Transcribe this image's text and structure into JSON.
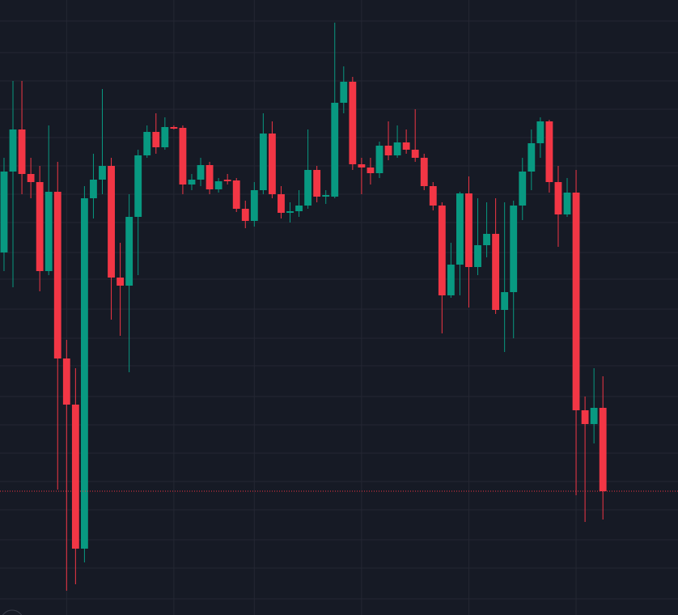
{
  "chart_data": {
    "type": "candlestick",
    "x": [
      0,
      1,
      2,
      3,
      4,
      5,
      6,
      7,
      8,
      9,
      10,
      11,
      12,
      13,
      14,
      15,
      16,
      17,
      18,
      19,
      20,
      21,
      22,
      23,
      24,
      25,
      26,
      27,
      28,
      29,
      30,
      31,
      32,
      33,
      34,
      35,
      36,
      37,
      38,
      39,
      40,
      41,
      42,
      43,
      44,
      45,
      46,
      47,
      48,
      49,
      50,
      51,
      52,
      53,
      54,
      55,
      56,
      57,
      58,
      59,
      60,
      61,
      62,
      63,
      64,
      65,
      66,
      67
    ],
    "open": [
      448,
      548,
      600,
      545,
      535,
      425,
      523,
      317,
      260,
      82,
      515,
      538,
      555,
      417,
      407,
      492,
      568,
      597,
      578,
      603,
      602,
      532,
      538,
      556,
      526,
      538,
      537,
      502,
      487,
      525,
      595,
      520,
      497,
      499,
      506,
      550,
      517,
      517,
      633,
      659,
      557,
      553,
      546,
      580,
      568,
      584,
      575,
      565,
      530,
      506,
      395,
      433,
      521,
      430,
      457,
      471,
      377,
      399,
      506,
      548,
      583,
      610,
      535,
      495,
      522,
      253,
      236,
      256
    ],
    "high": [
      565,
      660,
      660,
      565,
      555,
      605,
      560,
      340,
      305,
      530,
      570,
      650,
      565,
      460,
      520,
      575,
      605,
      620,
      615,
      605,
      605,
      545,
      565,
      560,
      540,
      545,
      540,
      512,
      535,
      620,
      610,
      530,
      510,
      525,
      600,
      555,
      525,
      732,
      678,
      665,
      565,
      565,
      585,
      610,
      605,
      600,
      625,
      570,
      535,
      510,
      460,
      523,
      542,
      515,
      510,
      515,
      510,
      512,
      565,
      600,
      615,
      612,
      555,
      540,
      550,
      270,
      305,
      295
    ],
    "low": [
      425,
      405,
      520,
      515,
      400,
      420,
      155,
      30,
      38,
      65,
      490,
      520,
      365,
      345,
      300,
      420,
      565,
      570,
      575,
      600,
      520,
      525,
      530,
      520,
      522,
      532,
      498,
      478,
      480,
      520,
      515,
      490,
      485,
      492,
      502,
      510,
      508,
      515,
      620,
      550,
      520,
      532,
      540,
      562,
      565,
      570,
      560,
      525,
      500,
      348,
      392,
      395,
      380,
      420,
      442,
      372,
      325,
      342,
      488,
      525,
      565,
      522,
      455,
      492,
      148,
      115,
      212,
      118
    ],
    "close": [
      548,
      600,
      545,
      535,
      425,
      523,
      317,
      260,
      82,
      515,
      538,
      555,
      417,
      407,
      492,
      568,
      597,
      578,
      603,
      601,
      532,
      538,
      556,
      526,
      536,
      536,
      502,
      487,
      525,
      595,
      520,
      497,
      499,
      506,
      550,
      517,
      519,
      633,
      659,
      557,
      553,
      546,
      580,
      568,
      584,
      575,
      565,
      530,
      506,
      395,
      433,
      521,
      430,
      457,
      471,
      377,
      399,
      506,
      548,
      583,
      610,
      535,
      495,
      522,
      253,
      236,
      256,
      153
    ],
    "up_color": "#089981",
    "down_color": "#f23645",
    "xlim": [
      -0.45,
      75.4
    ],
    "ylim": [
      0,
      760
    ],
    "xticks": [
      7,
      19,
      28,
      40,
      52,
      64
    ],
    "yticks": [
      20,
      58,
      93,
      130,
      165,
      200,
      235,
      270,
      308,
      342,
      378,
      415,
      448,
      485,
      520,
      555,
      590,
      625,
      660,
      695,
      734
    ],
    "grid": true
  }
}
